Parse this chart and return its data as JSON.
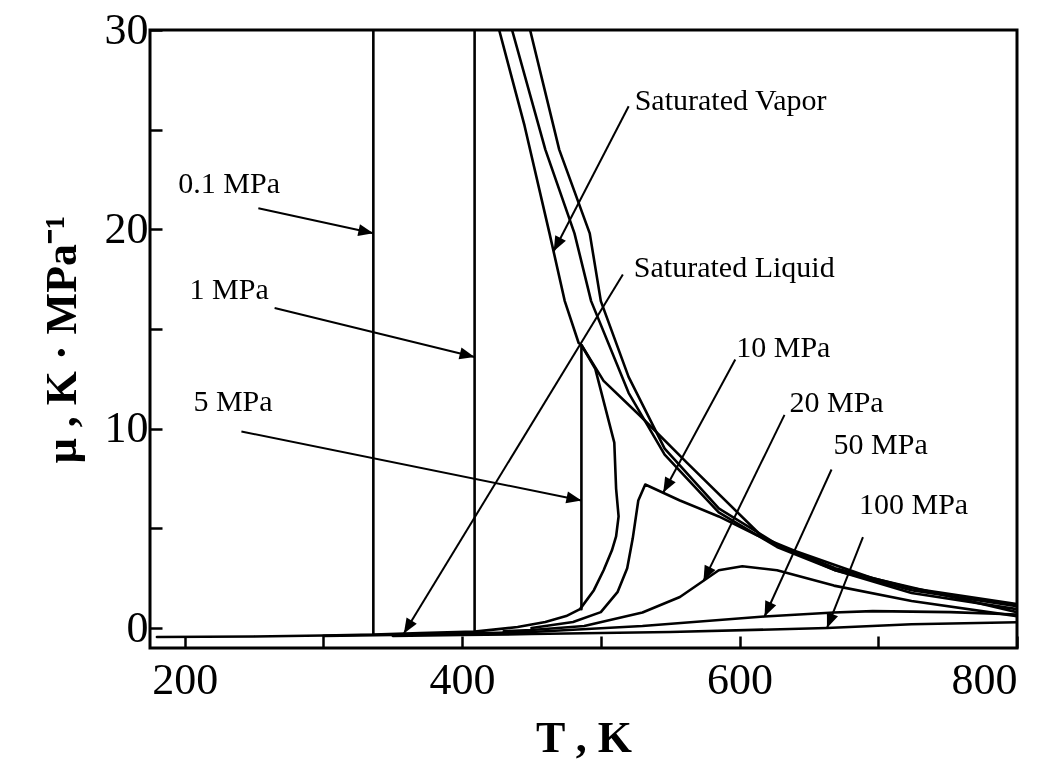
{
  "chart_data": {
    "type": "line",
    "xlabel": "T , K",
    "ylabel": "μ , K · MPa⁻¹",
    "xlim": [
      175,
      800
    ],
    "ylim": [
      -1,
      30
    ],
    "xticks": [
      200,
      {
        "value": 300,
        "label": null
      },
      400,
      {
        "value": 500,
        "label": null
      },
      600,
      {
        "value": 700,
        "label": null
      },
      800
    ],
    "yticks": [
      0,
      {
        "value": 5,
        "label": null
      },
      10,
      {
        "value": 15,
        "label": null
      },
      20,
      {
        "value": 25,
        "label": null
      },
      30
    ],
    "marker": "none",
    "line_style": "solid",
    "series": [
      {
        "color": "#000000",
        "x": [
          180,
          250,
          300,
          336,
          336
        ],
        "values": [
          -0.45,
          -0.42,
          -0.37,
          -0.32,
          30
        ]
      },
      {
        "color": "#000000",
        "x": [
          449,
          470,
          492,
          500,
          520,
          546,
          585,
          627,
          669,
          724,
          800
        ],
        "values": [
          30,
          24,
          19.8,
          16.4,
          12.6,
          9.0,
          6.0,
          4.2,
          3.0,
          2.0,
          1.2
        ]
      },
      {
        "color": "#000000",
        "x": [
          409,
          409
        ],
        "values": [
          -0.18,
          30
        ]
      },
      {
        "color": "#000000",
        "x": [
          436,
          460,
          481,
          493,
          520,
          546,
          585,
          627,
          669,
          724,
          800
        ],
        "values": [
          30,
          24,
          19.8,
          16.4,
          11.8,
          8.7,
          5.8,
          4.07,
          2.9,
          1.9,
          1.1
        ]
      },
      {
        "color": "#000000",
        "x": [
          486,
          486,
          502,
          529,
          562,
          618,
          669,
          724,
          800
        ],
        "values": [
          0.95,
          14.2,
          12.4,
          10.6,
          8.3,
          4.47,
          2.9,
          1.76,
          0.95
        ]
      },
      {
        "color": "#000000",
        "x": [
          450,
          480,
          500,
          512,
          519,
          523,
          527,
          532,
          557,
          585,
          613,
          640,
          696,
          800
        ],
        "values": [
          0.0,
          0.3,
          0.8,
          1.8,
          3.0,
          4.5,
          6.4,
          7.2,
          6.4,
          5.6,
          4.64,
          3.87,
          2.5,
          0.8
        ]
      },
      {
        "color": "#000000",
        "x": [
          430,
          450,
          488,
          530,
          557,
          585,
          602,
          627,
          668,
          724,
          800
        ],
        "values": [
          -0.16,
          -0.1,
          0.1,
          0.78,
          1.56,
          2.9,
          3.1,
          2.9,
          2.13,
          1.36,
          0.6
        ]
      },
      {
        "color": "#000000",
        "x": [
          300,
          350,
          400,
          450,
          530,
          618,
          668,
          696,
          752,
          800
        ],
        "values": [
          -0.39,
          -0.34,
          -0.28,
          -0.2,
          0.1,
          0.58,
          0.78,
          0.85,
          0.8,
          0.68
        ]
      },
      {
        "color": "#000000",
        "x": [
          350,
          400,
          450,
          550,
          663,
          724,
          800
        ],
        "values": [
          -0.39,
          -0.35,
          -0.3,
          -0.2,
          0.0,
          0.19,
          0.29
        ]
      },
      {
        "color": "#000000",
        "x": [
          336,
          370,
          409,
          440,
          460,
          475,
          485,
          495,
          502,
          508,
          511,
          512.8,
          511,
          509.7,
          496,
          486,
          484,
          474,
          463,
          445,
          426.7
        ],
        "values": [
          -0.32,
          -0.25,
          -0.18,
          0.05,
          0.3,
          0.6,
          0.95,
          1.9,
          2.9,
          3.9,
          4.6,
          5.6,
          7.0,
          9.3,
          13.0,
          14.2,
          14.3,
          16.4,
          19.8,
          25.2,
          30
        ]
      }
    ],
    "annotations": [
      {
        "text": "0.1 MPa",
        "x": 336,
        "y": 19.8
      },
      {
        "text": "1 MPa",
        "x": 409,
        "y": 13.6
      },
      {
        "text": "5 MPa",
        "x": 486,
        "y": 6.4
      },
      {
        "text": "Saturated Liquid",
        "x": 358,
        "y": -0.27
      },
      {
        "text": "Saturated Vapor",
        "x": 466,
        "y": 18.9
      },
      {
        "text": "10 MPa",
        "x": 545,
        "y": 6.8
      },
      {
        "text": "20 MPa",
        "x": 574,
        "y": 2.37
      },
      {
        "text": "50 MPa",
        "x": 618,
        "y": 0.58
      },
      {
        "text": "100 MPa",
        "x": 663,
        "y": 0.0
      }
    ]
  }
}
